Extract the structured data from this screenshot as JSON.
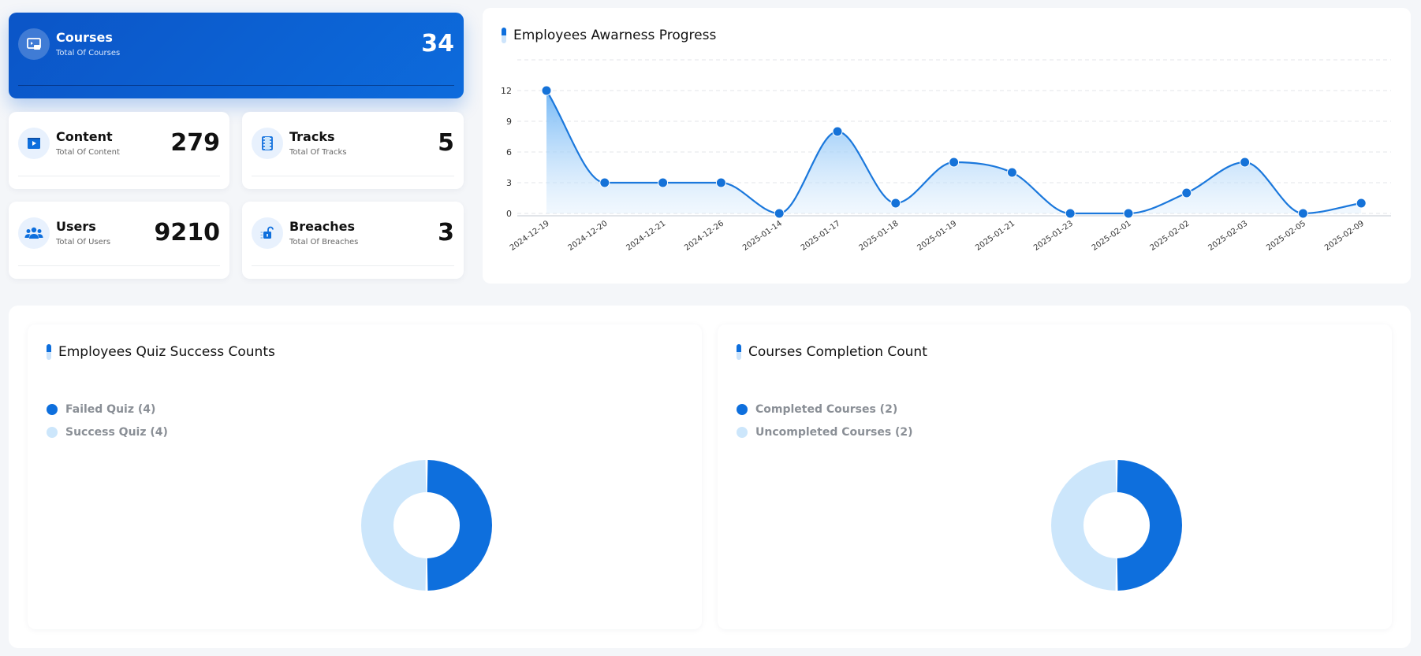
{
  "stats": [
    {
      "key": "courses",
      "title": "Courses",
      "subtitle": "Total Of Courses",
      "value": "34",
      "icon": "courses-icon"
    },
    {
      "key": "content",
      "title": "Content",
      "subtitle": "Total Of Content",
      "value": "279",
      "icon": "content-icon"
    },
    {
      "key": "tracks",
      "title": "Tracks",
      "subtitle": "Total Of Tracks",
      "value": "5",
      "icon": "tracks-icon"
    },
    {
      "key": "users",
      "title": "Users",
      "subtitle": "Total Of Users",
      "value": "9210",
      "icon": "users-icon"
    },
    {
      "key": "breaches",
      "title": "Breaches",
      "subtitle": "Total Of Breaches",
      "value": "3",
      "icon": "breaches-icon"
    }
  ],
  "colors": {
    "primary": "#0e6fdd",
    "light": "#cce6fb",
    "page": "#f4f6f9"
  },
  "chart_data": [
    {
      "type": "area",
      "title": "Employees Awarness Progress",
      "x": [
        "2024-12-19",
        "2024-12-20",
        "2024-12-21",
        "2024-12-26",
        "2025-01-14",
        "2025-01-17",
        "2025-01-18",
        "2025-01-19",
        "2025-01-21",
        "2025-01-23",
        "2025-02-01",
        "2025-02-02",
        "2025-02-03",
        "2025-02-05",
        "2025-02-09"
      ],
      "values": [
        12,
        3,
        3,
        3,
        0,
        8,
        1,
        5,
        4,
        0,
        0,
        2,
        5,
        0,
        1
      ],
      "yticks": [
        0,
        3,
        6,
        9,
        12
      ],
      "ylim": [
        0,
        15
      ],
      "grid": true,
      "xlabel": "",
      "ylabel": ""
    },
    {
      "type": "pie",
      "title": "Employees Quiz Success Counts",
      "legend_labels": [
        "Failed Quiz (4)",
        "Success Quiz (4)"
      ],
      "values": [
        4,
        4
      ],
      "colors": [
        "#0e6fdd",
        "#cce6fb"
      ],
      "legend_position": "top-left"
    },
    {
      "type": "pie",
      "title": "Courses Completion Count",
      "legend_labels": [
        "Completed Courses (2)",
        "Uncompleted Courses (2)"
      ],
      "values": [
        2,
        2
      ],
      "colors": [
        "#0e6fdd",
        "#cce6fb"
      ],
      "legend_position": "top-left"
    }
  ]
}
